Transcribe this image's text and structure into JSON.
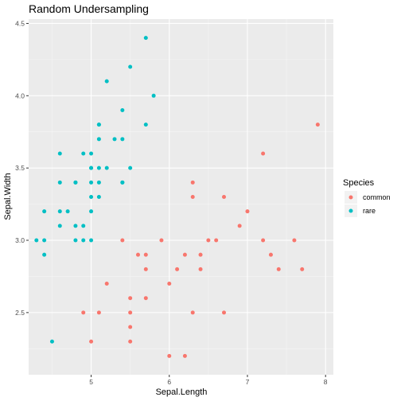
{
  "chart_data": {
    "type": "scatter",
    "title": "Random Undersampling",
    "xlabel": "Sepal.Length",
    "ylabel": "Sepal.Width",
    "xlim": [
      4.2,
      8.1
    ],
    "ylim": [
      2.07,
      4.53
    ],
    "xticks": [
      "5",
      "6",
      "7",
      "8"
    ],
    "yticks": [
      "2.5",
      "3.0",
      "3.5",
      "4.0",
      "4.5"
    ],
    "grid": true,
    "legend": {
      "title": "Species",
      "position": "right"
    },
    "series": [
      {
        "name": "common",
        "color": "#F8766D",
        "points": [
          [
            7.9,
            3.8
          ],
          [
            7.2,
            3.6
          ],
          [
            6.7,
            3.3
          ],
          [
            6.3,
            3.4
          ],
          [
            6.3,
            3.3
          ],
          [
            7.0,
            3.2
          ],
          [
            6.9,
            3.1
          ],
          [
            5.4,
            3.0
          ],
          [
            5.9,
            3.0
          ],
          [
            6.5,
            3.0
          ],
          [
            6.6,
            3.0
          ],
          [
            7.2,
            3.0
          ],
          [
            7.6,
            3.0
          ],
          [
            5.7,
            2.9
          ],
          [
            6.4,
            2.9
          ],
          [
            7.3,
            2.9
          ],
          [
            5.6,
            2.9
          ],
          [
            6.2,
            2.9
          ],
          [
            5.7,
            2.8
          ],
          [
            6.1,
            2.8
          ],
          [
            6.4,
            2.8
          ],
          [
            7.4,
            2.8
          ],
          [
            7.7,
            2.8
          ],
          [
            6.0,
            2.7
          ],
          [
            5.2,
            2.7
          ],
          [
            5.7,
            2.6
          ],
          [
            5.5,
            2.6
          ],
          [
            4.9,
            2.5
          ],
          [
            5.1,
            2.5
          ],
          [
            5.5,
            2.5
          ],
          [
            6.3,
            2.5
          ],
          [
            6.7,
            2.5
          ],
          [
            5.5,
            2.4
          ],
          [
            5.0,
            2.3
          ],
          [
            5.5,
            2.3
          ],
          [
            6.0,
            2.2
          ],
          [
            6.2,
            2.2
          ]
        ]
      },
      {
        "name": "rare",
        "color": "#00BFC4",
        "points": [
          [
            5.7,
            4.4
          ],
          [
            5.5,
            4.2
          ],
          [
            5.2,
            4.1
          ],
          [
            5.8,
            4.0
          ],
          [
            5.4,
            3.9
          ],
          [
            5.1,
            3.8
          ],
          [
            5.7,
            3.8
          ],
          [
            5.1,
            3.8
          ],
          [
            5.1,
            3.7
          ],
          [
            5.3,
            3.7
          ],
          [
            5.4,
            3.7
          ],
          [
            4.6,
            3.6
          ],
          [
            5.0,
            3.6
          ],
          [
            4.9,
            3.6
          ],
          [
            5.0,
            3.5
          ],
          [
            5.1,
            3.5
          ],
          [
            5.2,
            3.5
          ],
          [
            5.5,
            3.5
          ],
          [
            5.0,
            3.5
          ],
          [
            4.6,
            3.4
          ],
          [
            4.8,
            3.4
          ],
          [
            5.0,
            3.4
          ],
          [
            5.4,
            3.4
          ],
          [
            5.4,
            3.4
          ],
          [
            5.1,
            3.4
          ],
          [
            4.8,
            3.4
          ],
          [
            5.0,
            3.3
          ],
          [
            5.1,
            3.3
          ],
          [
            4.7,
            3.2
          ],
          [
            4.4,
            3.2
          ],
          [
            4.6,
            3.2
          ],
          [
            5.0,
            3.2
          ],
          [
            4.6,
            3.1
          ],
          [
            4.8,
            3.1
          ],
          [
            4.9,
            3.1
          ],
          [
            4.3,
            3.0
          ],
          [
            4.4,
            3.0
          ],
          [
            4.8,
            3.0
          ],
          [
            4.9,
            3.0
          ],
          [
            5.0,
            3.0
          ],
          [
            4.4,
            2.9
          ],
          [
            4.5,
            2.3
          ]
        ]
      }
    ]
  }
}
